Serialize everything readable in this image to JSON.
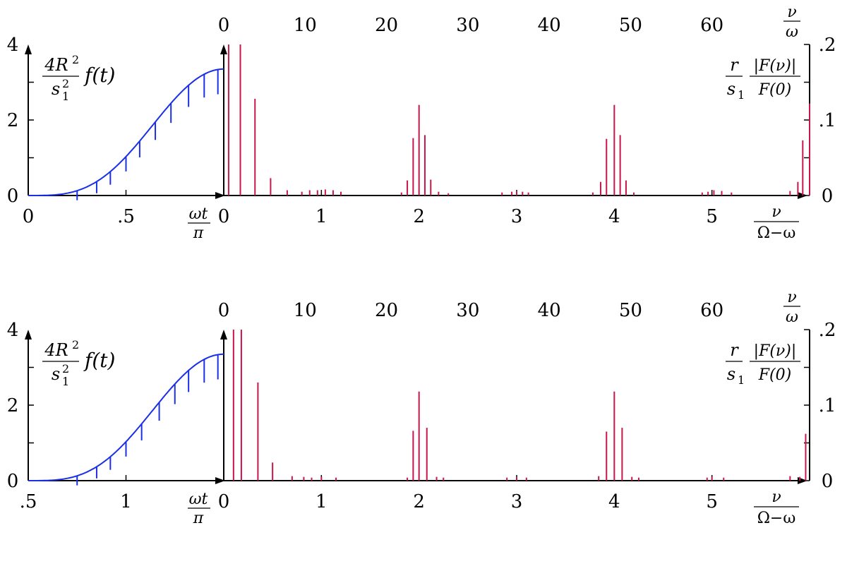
{
  "colors": {
    "curve": "#1a2fe6",
    "spectrum": "#c8154a",
    "axes": "#000000"
  },
  "labels": {
    "f_num": "4R",
    "f_num_sup": "2",
    "f_den": "s",
    "f_den_sup": "2",
    "f_den_sub": "1",
    "f_t": "f(t)",
    "omega_t": "ωt",
    "pi": "π",
    "nu": "ν",
    "omega": "ω",
    "Omega_minus_omega": "Ω−ω",
    "r": "r",
    "s1": "s",
    "s1_sub": "1",
    "F_nu": "|F(ν)|",
    "F_0": "F(0)"
  },
  "chart_data": [
    {
      "type": "line",
      "panel": "top-left",
      "ylim": [
        0,
        4
      ],
      "yticks": [
        "0",
        "2",
        "4"
      ],
      "xticks": [
        "0",
        ".5"
      ],
      "xrange": [
        0,
        1
      ],
      "curve": "0.5*(1-cos(pi*x))^2 scaled to peak 3.35",
      "peak": 3.35,
      "stems": [
        0.25,
        0.35,
        0.42,
        0.5,
        0.57,
        0.65,
        0.73,
        0.82,
        0.9,
        0.97
      ]
    },
    {
      "type": "bar",
      "panel": "top-right",
      "ylim": [
        0,
        0.2
      ],
      "yticks": [
        "0",
        ".1",
        ".2"
      ],
      "xticks_bottom": [
        "0",
        "1",
        "2",
        "3",
        "4",
        "5"
      ],
      "xticks_top": [
        "0",
        "10",
        "20",
        "30",
        "40",
        "50",
        "60"
      ],
      "xrange": [
        0,
        6
      ],
      "spikes": [
        [
          0.05,
          0.2
        ],
        [
          0.17,
          0.2
        ],
        [
          0.32,
          0.128
        ],
        [
          0.48,
          0.023
        ],
        [
          0.65,
          0.007
        ],
        [
          0.8,
          0.005
        ],
        [
          0.88,
          0.007
        ],
        [
          0.96,
          0.007
        ],
        [
          1.04,
          0.008
        ],
        [
          1.12,
          0.007
        ],
        [
          1.2,
          0.005
        ],
        [
          1.82,
          0.004
        ],
        [
          1.88,
          0.02
        ],
        [
          1.94,
          0.076
        ],
        [
          2.0,
          0.12
        ],
        [
          2.06,
          0.08
        ],
        [
          2.12,
          0.021
        ],
        [
          2.2,
          0.005
        ],
        [
          2.3,
          0.003
        ],
        [
          2.85,
          0.004
        ],
        [
          2.95,
          0.005
        ],
        [
          3.0,
          0.006
        ],
        [
          3.06,
          0.005
        ],
        [
          3.12,
          0.004
        ],
        [
          3.78,
          0.004
        ],
        [
          3.86,
          0.018
        ],
        [
          3.92,
          0.075
        ],
        [
          4.0,
          0.12
        ],
        [
          4.06,
          0.08
        ],
        [
          4.12,
          0.02
        ],
        [
          4.2,
          0.004
        ],
        [
          4.9,
          0.004
        ],
        [
          4.96,
          0.005
        ],
        [
          5.02,
          0.007
        ],
        [
          5.1,
          0.006
        ],
        [
          5.2,
          0.004
        ],
        [
          5.8,
          0.006
        ],
        [
          5.88,
          0.018
        ],
        [
          5.93,
          0.073
        ],
        [
          6.0,
          0.122
        ]
      ]
    },
    {
      "type": "line",
      "panel": "bottom-left",
      "ylim": [
        0,
        4
      ],
      "yticks": [
        "0",
        "2",
        "4"
      ],
      "xticks": [
        ".5",
        "1"
      ],
      "xrange": [
        0.5,
        1.5
      ],
      "peak": 3.35,
      "stems": [
        0.75,
        0.85,
        0.92,
        1.0,
        1.08,
        1.17,
        1.25,
        1.32,
        1.4,
        1.47
      ]
    },
    {
      "type": "bar",
      "panel": "bottom-right",
      "ylim": [
        0,
        0.2
      ],
      "yticks": [
        "0",
        ".1",
        ".2"
      ],
      "xticks_bottom": [
        "0",
        "1",
        "2",
        "3",
        "4",
        "5"
      ],
      "xticks_top": [
        "0",
        "10",
        "20",
        "30",
        "40",
        "50",
        "60"
      ],
      "xrange": [
        0,
        6
      ],
      "spikes": [
        [
          0.1,
          0.2
        ],
        [
          0.18,
          0.2
        ],
        [
          0.35,
          0.13
        ],
        [
          0.5,
          0.024
        ],
        [
          0.7,
          0.006
        ],
        [
          0.82,
          0.005
        ],
        [
          0.9,
          0.004
        ],
        [
          1.0,
          0.005
        ],
        [
          1.15,
          0.004
        ],
        [
          1.88,
          0.004
        ],
        [
          1.94,
          0.066
        ],
        [
          2.0,
          0.118
        ],
        [
          2.08,
          0.07
        ],
        [
          2.18,
          0.005
        ],
        [
          2.25,
          0.004
        ],
        [
          2.9,
          0.004
        ],
        [
          3.0,
          0.005
        ],
        [
          3.1,
          0.004
        ],
        [
          3.84,
          0.006
        ],
        [
          3.92,
          0.065
        ],
        [
          4.0,
          0.118
        ],
        [
          4.08,
          0.07
        ],
        [
          4.18,
          0.005
        ],
        [
          4.25,
          0.004
        ],
        [
          4.95,
          0.004
        ],
        [
          5.0,
          0.005
        ],
        [
          5.12,
          0.004
        ],
        [
          5.8,
          0.006
        ],
        [
          5.9,
          0.005
        ],
        [
          5.96,
          0.062
        ]
      ]
    }
  ]
}
